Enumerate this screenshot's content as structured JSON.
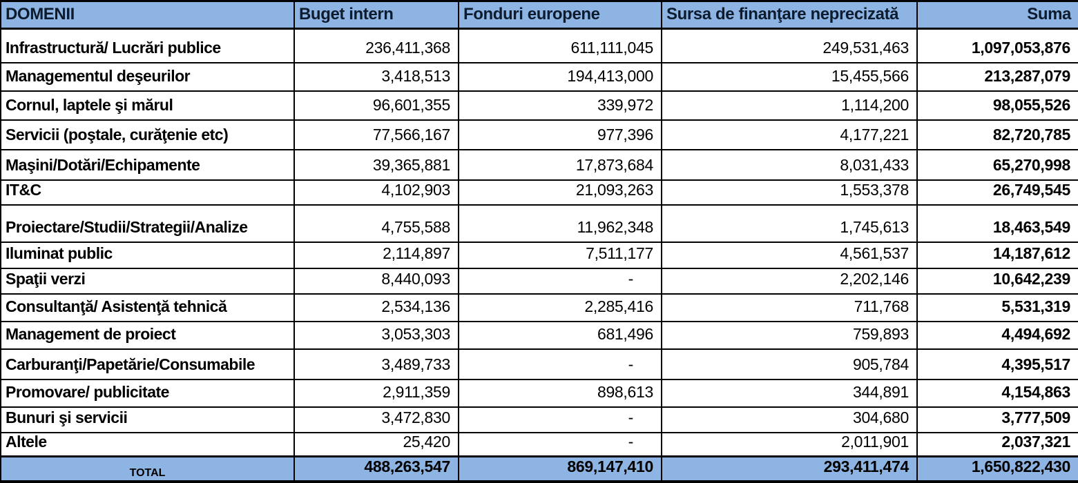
{
  "chart_data": {
    "type": "table",
    "columns": [
      "DOMENII",
      "Buget intern",
      "Fonduri europene",
      "Sursa de finanţare neprecizată",
      "Suma"
    ],
    "rows": [
      {
        "label": "Infrastructură/ Lucrări publice",
        "values": [
          "236,411,368",
          "611,111,045",
          "249,531,463",
          "1,097,053,876"
        ]
      },
      {
        "label": "Managementul deşeurilor",
        "values": [
          "3,418,513",
          "194,413,000",
          "15,455,566",
          "213,287,079"
        ]
      },
      {
        "label": "Cornul, laptele şi mărul",
        "values": [
          "96,601,355",
          "339,972",
          "1,114,200",
          "98,055,526"
        ]
      },
      {
        "label": "Servicii (poştale, curăţenie etc)",
        "values": [
          "77,566,167",
          "977,396",
          "4,177,221",
          "82,720,785"
        ]
      },
      {
        "label": "Maşini/Dotări/Echipamente",
        "values": [
          "39,365,881",
          "17,873,684",
          "8,031,433",
          "65,270,998"
        ]
      },
      {
        "label": "IT&C",
        "values": [
          "4,102,903",
          "21,093,263",
          "1,553,378",
          "26,749,545"
        ]
      },
      {
        "label": "Proiectare/Studii/Strategii/Analize",
        "values": [
          "4,755,588",
          "11,962,348",
          "1,745,613",
          "18,463,549"
        ]
      },
      {
        "label": "Iluminat public",
        "values": [
          "2,114,897",
          "7,511,177",
          "4,561,537",
          "14,187,612"
        ]
      },
      {
        "label": "Spaţii verzi",
        "values": [
          "8,440,093",
          "-",
          "2,202,146",
          "10,642,239"
        ]
      },
      {
        "label": "Consultanţă/ Asistenţă tehnică",
        "values": [
          "2,534,136",
          "2,285,416",
          "711,768",
          "5,531,319"
        ]
      },
      {
        "label": "Management de proiect",
        "values": [
          "3,053,303",
          "681,496",
          "759,893",
          "4,494,692"
        ]
      },
      {
        "label": "Carburanţi/Papetărie/Consumabile",
        "values": [
          "3,489,733",
          "-",
          "905,784",
          "4,395,517"
        ]
      },
      {
        "label": "Promovare/ publicitate",
        "values": [
          "2,911,359",
          "898,613",
          "344,891",
          "4,154,863"
        ]
      },
      {
        "label": "Bunuri şi servicii",
        "values": [
          "3,472,830",
          "-",
          "304,680",
          "3,777,509"
        ]
      },
      {
        "label": "Altele",
        "values": [
          "25,420",
          "-",
          "2,011,901",
          "2,037,321"
        ]
      }
    ],
    "total_row": {
      "label": "TOTAL",
      "values": [
        "488,263,547",
        "869,147,410",
        "293,411,474",
        "1,650,822,430"
      ]
    },
    "layout_hints": {
      "grid": "on",
      "value_alignment": "right",
      "label_alignment": "left"
    },
    "colors": {
      "header_bg": "#8DB4E2",
      "total_bg": "#8DB4E2",
      "header_text": "#0D1B2E",
      "body_text": "#000000",
      "border": "#000000",
      "body_bg": "#FFFFFF"
    }
  }
}
